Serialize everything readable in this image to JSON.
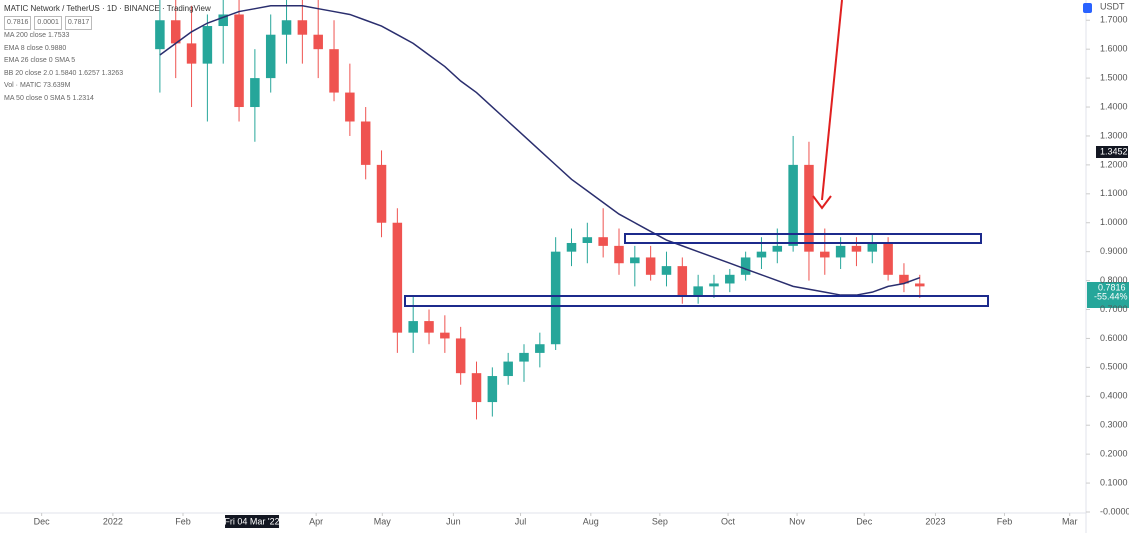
{
  "chart_data": {
    "type": "candlestick",
    "title": "MATIC Network / TetherUS · 1D · BINANCE · TradingView",
    "legend_lines": [
      "MA 200 close 1.7533",
      "EMA 8 close 0.9880",
      "EMA 26 close 0 SMA 5",
      "BB 20 close 2.0 1.5840 1.6257 1.3263",
      "Vol · MATIC 73.639M",
      "MA 50 close 0 SMA 5 1.2314"
    ],
    "price_boxes": [
      "0.7816",
      "0.0001",
      "0.7817"
    ],
    "currency": "USDT",
    "marker_price": "1.3452",
    "last_price": "0.7816",
    "last_change": "-55.44%",
    "cursor_label": "Fri 04 Mar '22",
    "ylim": [
      0,
      1.77
    ],
    "yticks": [
      {
        "value": 0,
        "label": "-0.0000"
      },
      {
        "value": 0.1,
        "label": "0.1000"
      },
      {
        "value": 0.2,
        "label": "0.2000"
      },
      {
        "value": 0.3,
        "label": "0.3000"
      },
      {
        "value": 0.4,
        "label": "0.4000"
      },
      {
        "value": 0.5,
        "label": "0.5000"
      },
      {
        "value": 0.6,
        "label": "0.6000"
      },
      {
        "value": 0.7,
        "label": "0.7000"
      },
      {
        "value": 0.8,
        "label": "0.8000"
      },
      {
        "value": 0.9,
        "label": "0.9000"
      },
      {
        "value": 1,
        "label": "1.0000"
      },
      {
        "value": 1.1,
        "label": "1.1000"
      },
      {
        "value": 1.2,
        "label": "1.2000"
      },
      {
        "value": 1.3,
        "label": "1.3000"
      },
      {
        "value": 1.4,
        "label": "1.4000"
      },
      {
        "value": 1.5,
        "label": "1.5000"
      },
      {
        "value": 1.6,
        "label": "1.6000"
      },
      {
        "value": 1.7,
        "label": "1.7000"
      }
    ],
    "xlim": [
      -10.1,
      58.5
    ],
    "xticks": [
      {
        "value": -7.47,
        "label": "Dec"
      },
      {
        "value": -2.97,
        "label": "2022"
      },
      {
        "value": 1.46,
        "label": "Feb"
      },
      {
        "value": 9.87,
        "label": "Apr"
      },
      {
        "value": 14.05,
        "label": "May"
      },
      {
        "value": 18.54,
        "label": "Jun"
      },
      {
        "value": 22.78,
        "label": "Jul"
      },
      {
        "value": 27.22,
        "label": "Aug"
      },
      {
        "value": 31.58,
        "label": "Sep"
      },
      {
        "value": 35.89,
        "label": "Oct"
      },
      {
        "value": 40.25,
        "label": "Nov"
      },
      {
        "value": 44.49,
        "label": "Dec"
      },
      {
        "value": 48.99,
        "label": "2023"
      },
      {
        "value": 53.35,
        "label": "Feb"
      },
      {
        "value": 57.47,
        "label": "Mar"
      }
    ],
    "cursor_x": 5.82,
    "up_color": "#26a69a",
    "down_color": "#ef5350",
    "ohlc": [
      [
        1.6,
        1.77,
        1.45,
        1.7
      ],
      [
        1.7,
        1.77,
        1.5,
        1.62
      ],
      [
        1.62,
        1.75,
        1.4,
        1.55
      ],
      [
        1.55,
        1.72,
        1.35,
        1.68
      ],
      [
        1.68,
        1.77,
        1.55,
        1.72
      ],
      [
        1.72,
        1.77,
        1.35,
        1.4
      ],
      [
        1.4,
        1.6,
        1.28,
        1.5
      ],
      [
        1.5,
        1.72,
        1.45,
        1.65
      ],
      [
        1.65,
        1.77,
        1.55,
        1.7
      ],
      [
        1.7,
        1.77,
        1.55,
        1.65
      ],
      [
        1.65,
        1.77,
        1.5,
        1.6
      ],
      [
        1.6,
        1.7,
        1.42,
        1.45
      ],
      [
        1.45,
        1.55,
        1.3,
        1.35
      ],
      [
        1.35,
        1.4,
        1.15,
        1.2
      ],
      [
        1.2,
        1.25,
        0.95,
        1.0
      ],
      [
        1.0,
        1.05,
        0.55,
        0.62
      ],
      [
        0.62,
        0.75,
        0.55,
        0.66
      ],
      [
        0.66,
        0.7,
        0.58,
        0.62
      ],
      [
        0.62,
        0.68,
        0.55,
        0.6
      ],
      [
        0.6,
        0.64,
        0.44,
        0.48
      ],
      [
        0.48,
        0.52,
        0.32,
        0.38
      ],
      [
        0.38,
        0.5,
        0.33,
        0.47
      ],
      [
        0.47,
        0.55,
        0.44,
        0.52
      ],
      [
        0.52,
        0.58,
        0.45,
        0.55
      ],
      [
        0.55,
        0.62,
        0.5,
        0.58
      ],
      [
        0.58,
        0.95,
        0.56,
        0.9
      ],
      [
        0.9,
        0.98,
        0.85,
        0.93
      ],
      [
        0.93,
        1.0,
        0.86,
        0.95
      ],
      [
        0.95,
        1.05,
        0.88,
        0.92
      ],
      [
        0.92,
        0.98,
        0.82,
        0.86
      ],
      [
        0.86,
        0.92,
        0.78,
        0.88
      ],
      [
        0.88,
        0.92,
        0.8,
        0.82
      ],
      [
        0.82,
        0.9,
        0.78,
        0.85
      ],
      [
        0.85,
        0.88,
        0.72,
        0.75
      ],
      [
        0.75,
        0.82,
        0.72,
        0.78
      ],
      [
        0.78,
        0.82,
        0.74,
        0.79
      ],
      [
        0.79,
        0.84,
        0.76,
        0.82
      ],
      [
        0.82,
        0.9,
        0.8,
        0.88
      ],
      [
        0.88,
        0.95,
        0.84,
        0.9
      ],
      [
        0.9,
        0.98,
        0.86,
        0.92
      ],
      [
        0.92,
        1.3,
        0.9,
        1.2
      ],
      [
        1.2,
        1.28,
        0.8,
        0.9
      ],
      [
        0.9,
        0.98,
        0.82,
        0.88
      ],
      [
        0.88,
        0.95,
        0.84,
        0.92
      ],
      [
        0.92,
        0.95,
        0.85,
        0.9
      ],
      [
        0.9,
        0.96,
        0.86,
        0.93
      ],
      [
        0.93,
        0.95,
        0.8,
        0.82
      ],
      [
        0.82,
        0.86,
        0.76,
        0.79
      ],
      [
        0.79,
        0.82,
        0.74,
        0.78
      ]
    ],
    "ma": {
      "color": "#2a2e6e",
      "values": [
        1.58,
        1.62,
        1.66,
        1.69,
        1.71,
        1.73,
        1.74,
        1.75,
        1.75,
        1.75,
        1.74,
        1.73,
        1.72,
        1.7,
        1.68,
        1.65,
        1.62,
        1.58,
        1.54,
        1.49,
        1.45,
        1.4,
        1.35,
        1.3,
        1.25,
        1.2,
        1.15,
        1.11,
        1.07,
        1.03,
        1.0,
        0.97,
        0.94,
        0.92,
        0.9,
        0.88,
        0.86,
        0.84,
        0.82,
        0.8,
        0.78,
        0.77,
        0.76,
        0.75,
        0.75,
        0.76,
        0.78,
        0.79,
        0.81
      ]
    }
  }
}
